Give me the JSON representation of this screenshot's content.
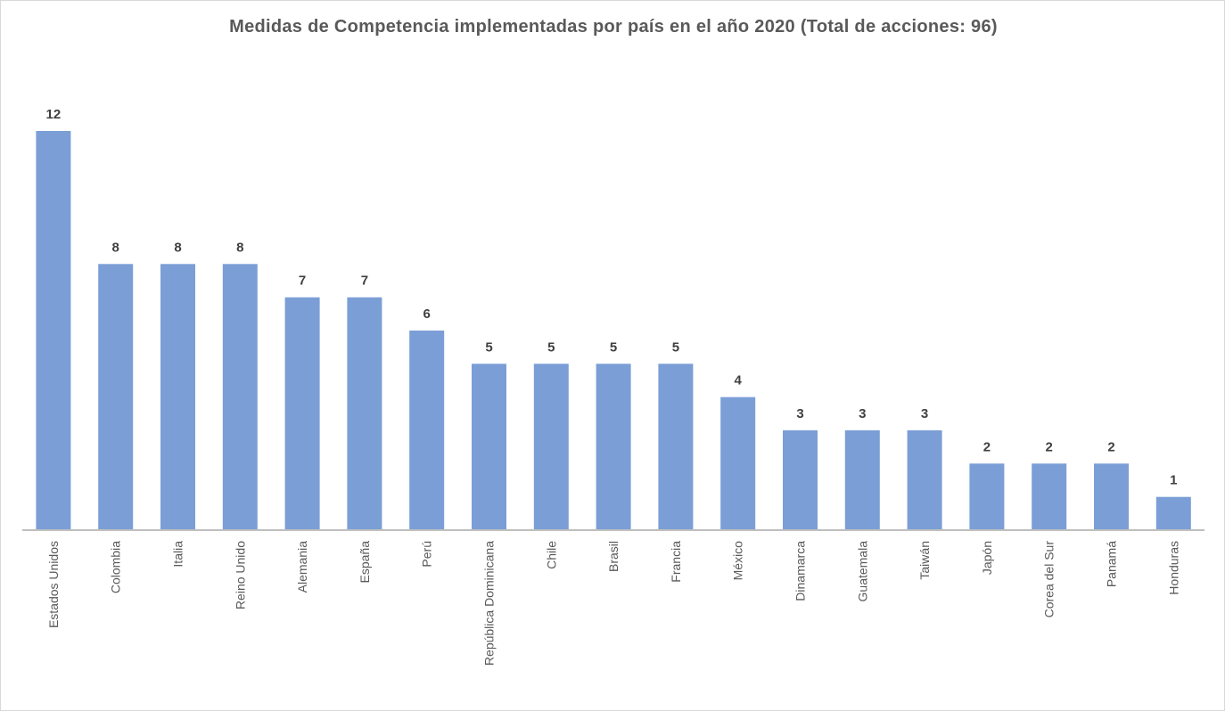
{
  "chart_data": {
    "type": "bar",
    "title": "Medidas de Competencia implementadas por país en el año 2020 (Total de acciones: 96)",
    "categories": [
      "Estados Unidos",
      "Colombia",
      "Italia",
      "Reino Unido",
      "Alemania",
      "España",
      "Perú",
      "República Dominicana",
      "Chile",
      "Brasil",
      "Francia",
      "México",
      "Dinamarca",
      "Guatemala",
      "Taiwán",
      "Japón",
      "Corea del Sur",
      "Panamá",
      "Honduras"
    ],
    "values": [
      12,
      8,
      8,
      8,
      7,
      7,
      6,
      5,
      5,
      5,
      5,
      4,
      3,
      3,
      3,
      2,
      2,
      2,
      1
    ],
    "ylim": [
      0,
      12
    ],
    "grid": false,
    "legend": "none",
    "colors": {
      "bar": "#7b9ed6",
      "axis": "#bfbfbf"
    }
  }
}
